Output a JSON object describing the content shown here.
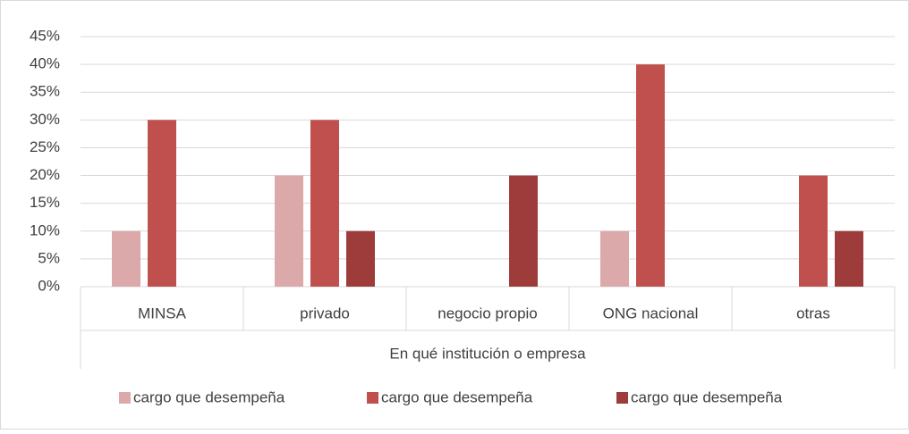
{
  "chart_data": {
    "type": "bar",
    "x_label": "En qué institución o empresa",
    "categories": [
      "MINSA",
      "privado",
      "negocio propio",
      "ONG nacional",
      "otras"
    ],
    "series": [
      {
        "name": "cargo que desempeña",
        "color": "#dba9a9",
        "values": [
          10,
          20,
          null,
          10,
          null
        ]
      },
      {
        "name": "cargo que desempeña",
        "color": "#c0504d",
        "values": [
          30,
          30,
          null,
          40,
          20
        ]
      },
      {
        "name": "cargo que desempeña",
        "color": "#9e3c3c",
        "values": [
          null,
          10,
          20,
          null,
          10
        ]
      }
    ],
    "ylim": [
      0,
      45
    ],
    "yticks": [
      {
        "value": 0,
        "label": "0%"
      },
      {
        "value": 5,
        "label": "5%"
      },
      {
        "value": 10,
        "label": "10%"
      },
      {
        "value": 15,
        "label": "15%"
      },
      {
        "value": 20,
        "label": "20%"
      },
      {
        "value": 25,
        "label": "25%"
      },
      {
        "value": 30,
        "label": "30%"
      },
      {
        "value": 35,
        "label": "35%"
      },
      {
        "value": 40,
        "label": "40%"
      },
      {
        "value": 45,
        "label": "45%"
      }
    ],
    "grid": true,
    "legend": "bottom"
  }
}
